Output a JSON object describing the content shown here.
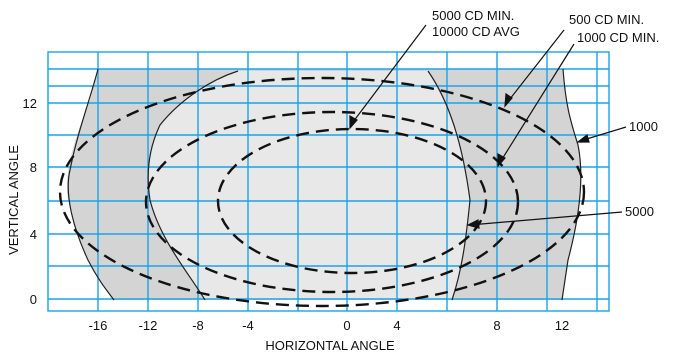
{
  "diagram": {
    "xlabel": "HORIZONTAL ANGLE",
    "ylabel": "VERTICAL ANGLE",
    "x_ticks": [
      "-16",
      "-12",
      "-8",
      "-4",
      "0",
      "4",
      "8",
      "12"
    ],
    "y_ticks": [
      "0",
      "4",
      "8",
      "12"
    ],
    "x_range": [
      -18,
      14
    ],
    "y_range": [
      -1,
      14
    ],
    "annotations": {
      "callout_5000_min": "5000 CD MIN.",
      "callout_10000_avg": "10000 CD AVG",
      "callout_500_min": "500 CD MIN.",
      "callout_1000_min": "1000 CD MIN.",
      "contour_1000": "1000",
      "contour_5000": "5000"
    },
    "colors": {
      "grid": "#1aa3e8",
      "outer_region": "#d4d4d4",
      "inner_region": "#e8e8e8",
      "boundary": "#222222",
      "dashed": "#111111"
    }
  }
}
